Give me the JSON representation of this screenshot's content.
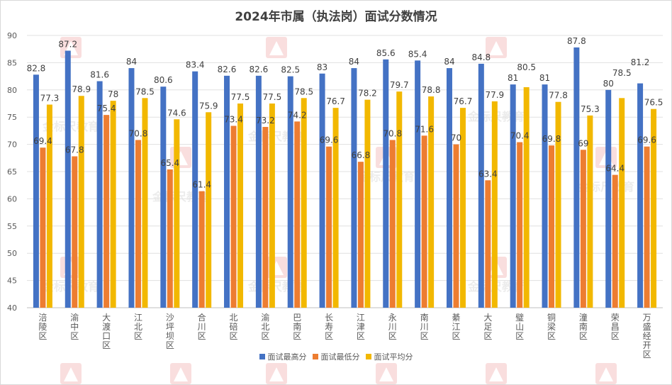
{
  "chart_data": {
    "type": "bar",
    "title": "2024年市属（执法岗）面试分数情况",
    "xlabel": "",
    "ylabel": "",
    "ylim": [
      40,
      90
    ],
    "yticks": [
      40,
      45,
      50,
      55,
      60,
      65,
      70,
      75,
      80,
      85,
      90
    ],
    "grid": true,
    "legend_position": "bottom",
    "categories": [
      "涪陵区",
      "渝中区",
      "大渡口区",
      "江北区",
      "沙坪坝区",
      "合川区",
      "北碚区",
      "渝北区",
      "巴南区",
      "长寿区",
      "江津区",
      "永川区",
      "南川区",
      "綦江区",
      "大足区",
      "璧山区",
      "铜梁区",
      "潼南区",
      "荣昌区",
      "万盛经开区"
    ],
    "series": [
      {
        "name": "面试最高分",
        "color": "#4472C4",
        "values": [
          82.8,
          87.2,
          81.6,
          84,
          80.6,
          83.4,
          82.6,
          82.6,
          82.5,
          83,
          84,
          85.6,
          85.4,
          84,
          84.8,
          81,
          81,
          87.8,
          80,
          81.2
        ]
      },
      {
        "name": "面试最低分",
        "color": "#ED7D31",
        "values": [
          69.4,
          67.8,
          75.4,
          70.8,
          65.4,
          61.4,
          73.4,
          73.2,
          74.2,
          69.6,
          66.8,
          70.8,
          71.6,
          70,
          63.4,
          70.4,
          69.8,
          69,
          64.4,
          69.6
        ]
      },
      {
        "name": "面试平均分",
        "color": "#F2B800",
        "values": [
          77.3,
          78.9,
          78,
          78.5,
          74.6,
          75.9,
          77.5,
          77.5,
          78.5,
          76.7,
          78.2,
          79.7,
          78.8,
          76.7,
          77.9,
          80.5,
          77.8,
          75.3,
          78.5,
          76.5
        ]
      }
    ],
    "data_labels": true
  },
  "watermark": {
    "text": "金标尺教育"
  }
}
